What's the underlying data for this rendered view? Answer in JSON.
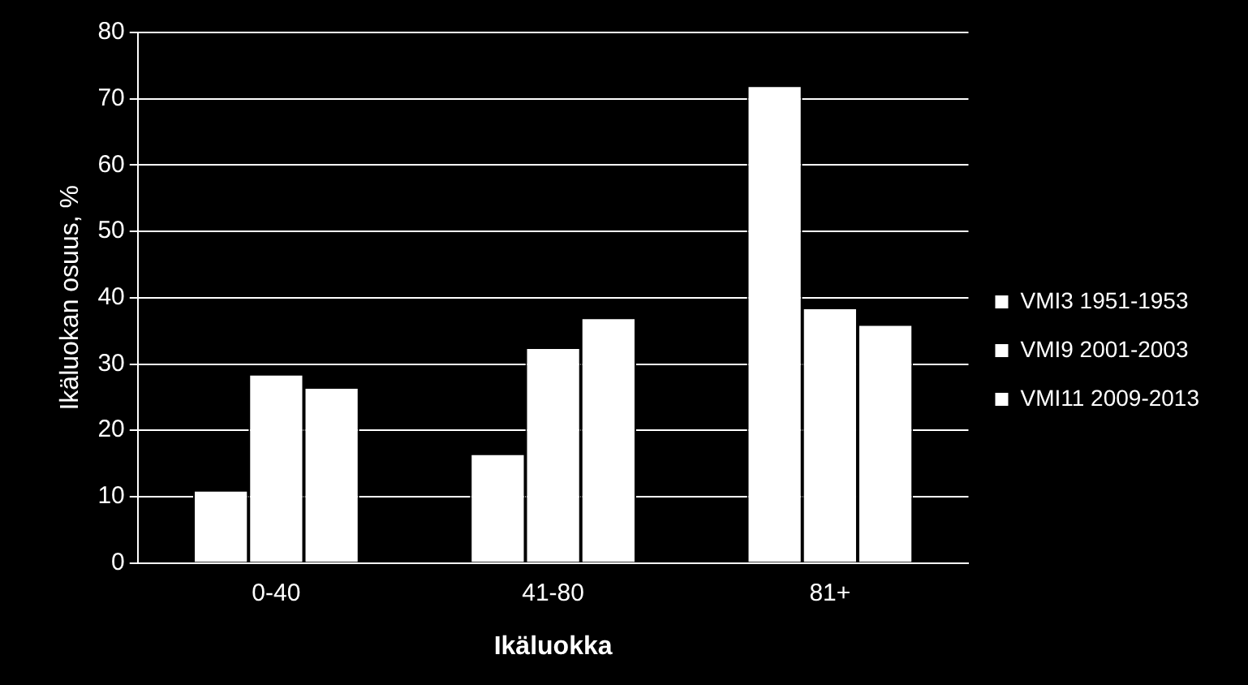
{
  "chart_data": {
    "type": "bar",
    "xlabel": "Ikäluokka",
    "ylabel": "Ikäluokan osuus, %",
    "categories": [
      "0-40",
      "41-80",
      "81+"
    ],
    "series": [
      {
        "name": "VMI3 1951-1953",
        "color": "#ffffff",
        "values": [
          11,
          16.5,
          72
        ]
      },
      {
        "name": "VMI9 2001-2003",
        "color": "#ffffff",
        "values": [
          28.5,
          32.5,
          38.5
        ]
      },
      {
        "name": "VMI11 2009-2013",
        "color": "#ffffff",
        "values": [
          26.5,
          37,
          36
        ]
      }
    ],
    "ylim": [
      0,
      80
    ],
    "yticks": [
      0,
      10,
      20,
      30,
      40,
      50,
      60,
      70,
      80
    ],
    "grid": "y",
    "legend": "right"
  }
}
